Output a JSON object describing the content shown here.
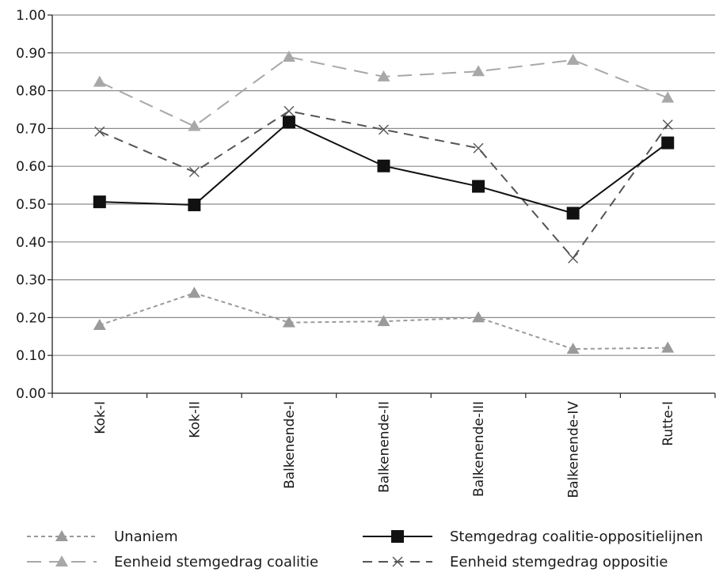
{
  "chart_data": {
    "type": "line",
    "categories": [
      "Kok-I",
      "Kok-II",
      "Balkenende-I",
      "Balkenende-II",
      "Balkenende-III",
      "Balkenende-IV",
      "Rutte-I"
    ],
    "ylim": [
      0,
      1
    ],
    "yticks": [
      "0.00",
      "0.10",
      "0.20",
      "0.30",
      "0.40",
      "0.50",
      "0.60",
      "0.70",
      "0.80",
      "0.90",
      "1.00"
    ],
    "grid": true,
    "legend_position": "bottom",
    "series": [
      {
        "id": "unaniem",
        "name": "Unaniem",
        "values": [
          0.18,
          0.265,
          0.187,
          0.19,
          0.2,
          0.117,
          0.12
        ],
        "color": "#9a9a9a",
        "line_style": "short-dash",
        "marker": "triangle"
      },
      {
        "id": "coalitie-oppositie",
        "name": "Stemgedrag coalitie-oppositielijnen",
        "values": [
          0.506,
          0.498,
          0.717,
          0.601,
          0.547,
          0.476,
          0.662
        ],
        "color": "#111111",
        "line_style": "solid",
        "marker": "square"
      },
      {
        "id": "eenheid-coalitie",
        "name": "Eenheid stemgedrag coalitie",
        "values": [
          0.823,
          0.706,
          0.889,
          0.837,
          0.851,
          0.881,
          0.781
        ],
        "color": "#a8a8a8",
        "line_style": "long-dash",
        "marker": "triangle"
      },
      {
        "id": "eenheid-oppositie",
        "name": "Eenheid stemgedrag oppositie",
        "values": [
          0.692,
          0.585,
          0.746,
          0.697,
          0.648,
          0.357,
          0.71
        ],
        "color": "#555555",
        "line_style": "dash",
        "marker": "x"
      }
    ]
  }
}
